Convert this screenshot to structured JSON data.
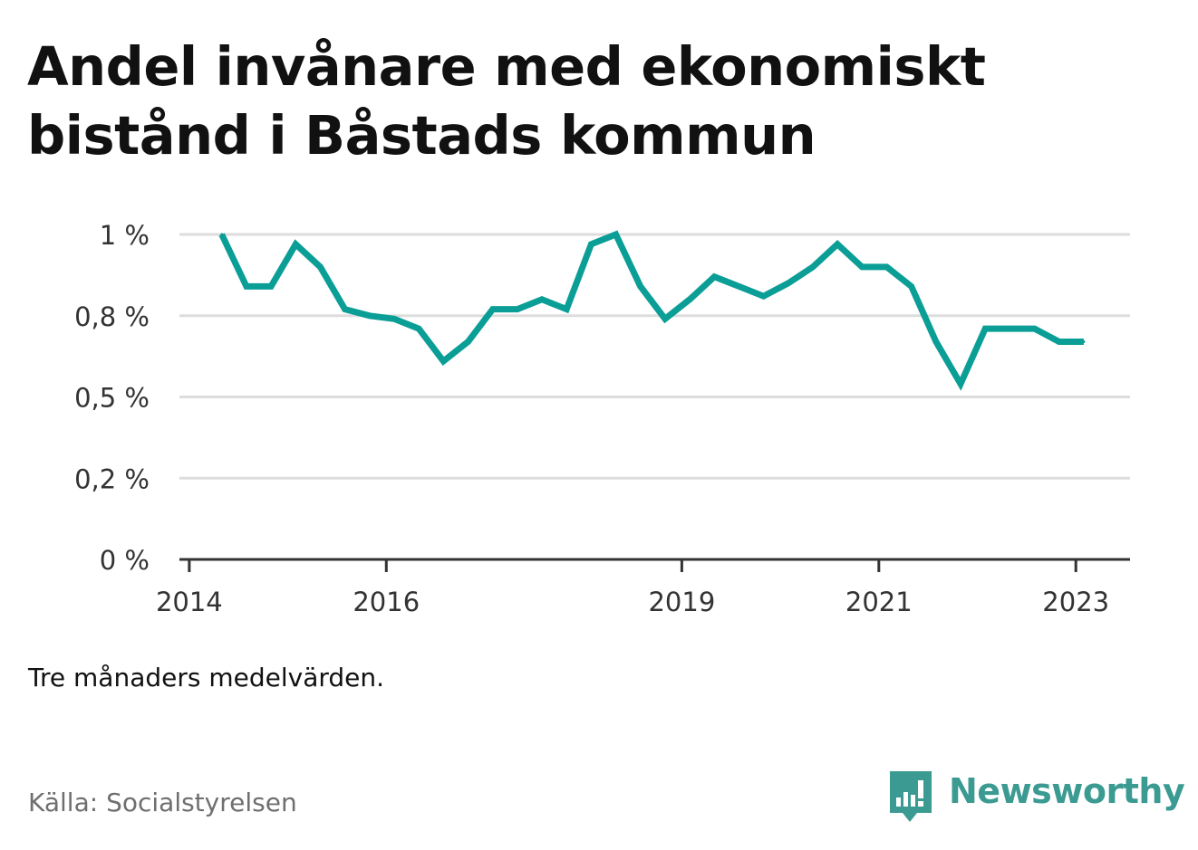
{
  "title": "Andel invånare med ekonomiskt bistånd i Båstads kommun",
  "note": "Tre månaders medelvärden.",
  "source": "Källa: Socialstyrelsen",
  "brand": "Newsworthy",
  "colors": {
    "line": "#0a9e96",
    "grid": "#dddddd",
    "axis": "#333333",
    "brand": "#3b9b92"
  },
  "chart_data": {
    "type": "line",
    "title": "Andel invånare med ekonomiskt bistånd i Båstads kommun",
    "xlabel": "",
    "ylabel": "",
    "grid": true,
    "ylim": [
      0,
      1
    ],
    "y_ticks": [
      {
        "value": 0,
        "label": "0 %"
      },
      {
        "value": 0.25,
        "label": "0,2 %"
      },
      {
        "value": 0.5,
        "label": "0,5 %"
      },
      {
        "value": 0.75,
        "label": "0,8 %"
      },
      {
        "value": 1.0,
        "label": "1 %"
      }
    ],
    "x_ticks": [
      {
        "value": 2014.0,
        "label": "2014"
      },
      {
        "value": 2016.0,
        "label": "2016"
      },
      {
        "value": 2019.0,
        "label": "2019"
      },
      {
        "value": 2021.0,
        "label": "2021"
      },
      {
        "value": 2023.0,
        "label": "2023"
      }
    ],
    "xlim": [
      2013.9,
      2023.55
    ],
    "series": [
      {
        "values": [
          [
            2014.33,
            1.0
          ],
          [
            2014.58,
            0.84
          ],
          [
            2014.83,
            0.84
          ],
          [
            2015.08,
            0.97
          ],
          [
            2015.33,
            0.9
          ],
          [
            2015.58,
            0.77
          ],
          [
            2015.83,
            0.75
          ],
          [
            2016.08,
            0.74
          ],
          [
            2016.33,
            0.71
          ],
          [
            2016.58,
            0.61
          ],
          [
            2016.83,
            0.67
          ],
          [
            2017.08,
            0.77
          ],
          [
            2017.33,
            0.77
          ],
          [
            2017.58,
            0.8
          ],
          [
            2017.83,
            0.77
          ],
          [
            2018.08,
            0.97
          ],
          [
            2018.33,
            1.0
          ],
          [
            2018.58,
            0.84
          ],
          [
            2018.83,
            0.74
          ],
          [
            2019.08,
            0.8
          ],
          [
            2019.33,
            0.87
          ],
          [
            2019.58,
            0.84
          ],
          [
            2019.83,
            0.81
          ],
          [
            2020.08,
            0.85
          ],
          [
            2020.33,
            0.9
          ],
          [
            2020.58,
            0.97
          ],
          [
            2020.83,
            0.9
          ],
          [
            2021.08,
            0.9
          ],
          [
            2021.33,
            0.84
          ],
          [
            2021.58,
            0.67
          ],
          [
            2021.83,
            0.54
          ],
          [
            2022.08,
            0.71
          ],
          [
            2022.33,
            0.71
          ],
          [
            2022.58,
            0.71
          ],
          [
            2022.83,
            0.67
          ],
          [
            2023.08,
            0.67
          ]
        ]
      }
    ]
  }
}
